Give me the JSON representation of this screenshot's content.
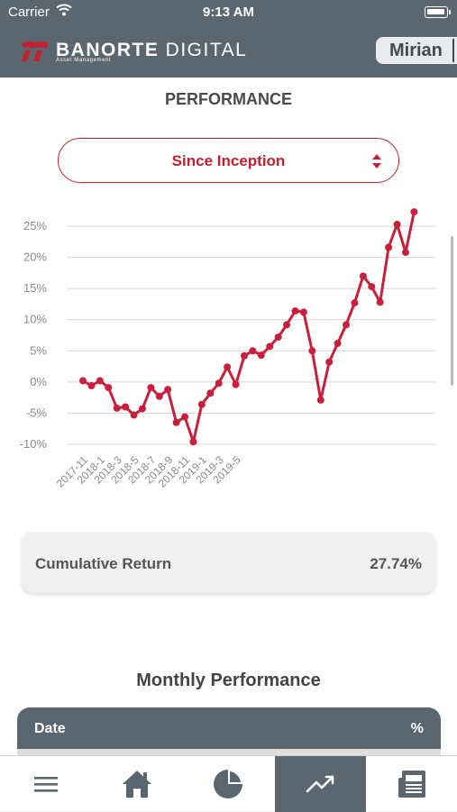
{
  "status_bar": {
    "carrier": "Carrier",
    "time": "9:13 AM"
  },
  "header": {
    "brand_bold": "BANORTE",
    "brand_light": " DIGITAL",
    "brand_sub": "Asset Management",
    "user": "Mirian"
  },
  "page": {
    "title": "PERFORMANCE"
  },
  "period_select": {
    "selected": "Since Inception"
  },
  "chart_data": {
    "type": "line",
    "title": "",
    "xlabel": "",
    "ylabel": "",
    "ylim": [
      -10,
      25
    ],
    "y_ticks": [
      "25%",
      "20%",
      "15%",
      "10%",
      "5%",
      "0%",
      "-5%",
      "-10%"
    ],
    "x_ticks": [
      "2017-11",
      "2018-1",
      "2018-3",
      "2018-5",
      "2018-7",
      "2018-9",
      "2018-11",
      "2019-1",
      "2019-3",
      "2019-5"
    ],
    "grid": true,
    "series": [
      {
        "color": "#c8203c",
        "values": [
          0.2,
          -0.6,
          0.2,
          -0.9,
          -4.2,
          -4.0,
          -5.3,
          -4.3,
          -0.9,
          -2.3,
          -1.2,
          -6.5,
          -5.6,
          -9.6,
          -3.6,
          -1.8,
          -0.2,
          2.4,
          -0.4,
          4.2,
          5.0,
          4.3,
          5.7,
          7.2,
          9.2,
          11.4,
          11.2,
          5.0,
          -2.9,
          3.2,
          6.2,
          9.2,
          12.7,
          17.0,
          15.3,
          12.8,
          21.6,
          25.3,
          20.8,
          27.3
        ]
      }
    ]
  },
  "cumulative": {
    "label": "Cumulative Return",
    "value": "27.74%"
  },
  "monthly": {
    "title": "Monthly Performance",
    "col_date": "Date",
    "col_pct": "%"
  },
  "tabs": [
    {
      "icon": "menu-icon"
    },
    {
      "icon": "home-icon"
    },
    {
      "icon": "pie-chart-icon"
    },
    {
      "icon": "trending-up-icon",
      "active": true
    },
    {
      "icon": "newspaper-icon"
    }
  ]
}
